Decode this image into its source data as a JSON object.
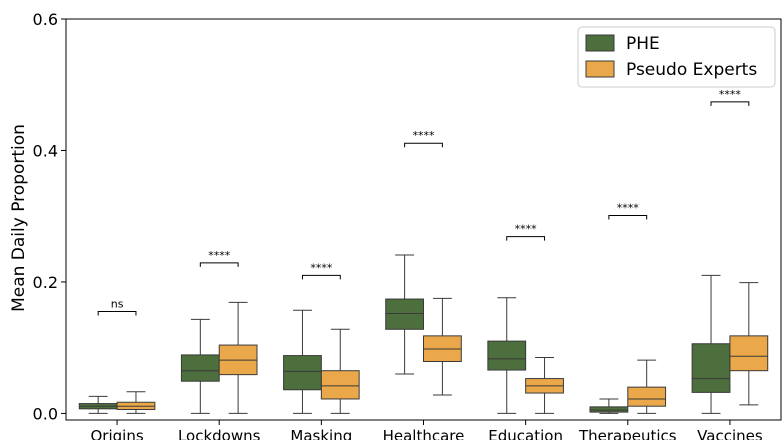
{
  "chart_data": {
    "type": "box",
    "title": "",
    "xlabel": "",
    "ylabel": "Mean Daily Proportion",
    "ylim": [
      -0.01,
      0.6
    ],
    "yticks": [
      0.0,
      0.2,
      0.4,
      0.6
    ],
    "ytick_labels": [
      "0.0",
      "0.2",
      "0.4",
      "0.6"
    ],
    "categories": [
      "Origins",
      "Lockdowns",
      "Masking",
      "Healthcare",
      "Education",
      "Therapeutics",
      "Vaccines"
    ],
    "legend_position": "top-right",
    "series": [
      {
        "name": "PHE",
        "color": "#4d6e3d",
        "boxes": [
          {
            "whislo": 0.0,
            "q1": 0.007,
            "med": 0.011,
            "q3": 0.015,
            "whishi": 0.026
          },
          {
            "whislo": 0.0,
            "q1": 0.049,
            "med": 0.065,
            "q3": 0.089,
            "whishi": 0.143
          },
          {
            "whislo": 0.0,
            "q1": 0.036,
            "med": 0.064,
            "q3": 0.088,
            "whishi": 0.157
          },
          {
            "whislo": 0.06,
            "q1": 0.128,
            "med": 0.152,
            "q3": 0.174,
            "whishi": 0.241
          },
          {
            "whislo": 0.0,
            "q1": 0.066,
            "med": 0.083,
            "q3": 0.11,
            "whishi": 0.176
          },
          {
            "whislo": 0.0,
            "q1": 0.002,
            "med": 0.005,
            "q3": 0.01,
            "whishi": 0.022
          },
          {
            "whislo": 0.0,
            "q1": 0.032,
            "med": 0.053,
            "q3": 0.106,
            "whishi": 0.21
          }
        ]
      },
      {
        "name": "Pseudo Experts",
        "color": "#eba84b",
        "boxes": [
          {
            "whislo": 0.0,
            "q1": 0.006,
            "med": 0.011,
            "q3": 0.017,
            "whishi": 0.033
          },
          {
            "whislo": 0.0,
            "q1": 0.059,
            "med": 0.081,
            "q3": 0.104,
            "whishi": 0.169
          },
          {
            "whislo": 0.0,
            "q1": 0.022,
            "med": 0.042,
            "q3": 0.065,
            "whishi": 0.128
          },
          {
            "whislo": 0.028,
            "q1": 0.079,
            "med": 0.098,
            "q3": 0.118,
            "whishi": 0.175
          },
          {
            "whislo": 0.0,
            "q1": 0.031,
            "med": 0.042,
            "q3": 0.053,
            "whishi": 0.085
          },
          {
            "whislo": 0.0,
            "q1": 0.011,
            "med": 0.022,
            "q3": 0.04,
            "whishi": 0.081
          },
          {
            "whislo": 0.013,
            "q1": 0.065,
            "med": 0.087,
            "q3": 0.118,
            "whishi": 0.199
          }
        ]
      }
    ],
    "significance": [
      {
        "category": "Origins",
        "label": "ns",
        "y": 0.155
      },
      {
        "category": "Lockdowns",
        "label": "****",
        "y": 0.229
      },
      {
        "category": "Masking",
        "label": "****",
        "y": 0.21
      },
      {
        "category": "Healthcare",
        "label": "****",
        "y": 0.411
      },
      {
        "category": "Education",
        "label": "****",
        "y": 0.269
      },
      {
        "category": "Therapeutics",
        "label": "****",
        "y": 0.301
      },
      {
        "category": "Vaccines",
        "label": "****",
        "y": 0.474
      }
    ]
  }
}
